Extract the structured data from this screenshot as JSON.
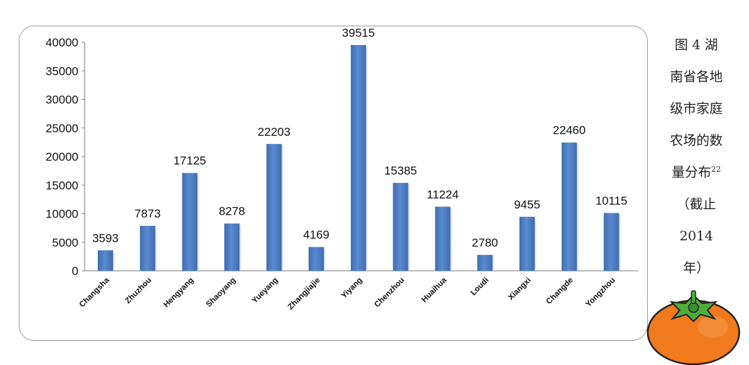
{
  "chart_data": {
    "type": "bar",
    "categories": [
      "Changsha",
      "Zhuzhou",
      "Hengyang",
      "Shaoyang",
      "Yueyang",
      "Zhangjiajie",
      "Yiyang",
      "Chenzhou",
      "Huaihua",
      "Loudi",
      "Xiangxi",
      "Changde",
      "Yongzhou"
    ],
    "values": [
      3593,
      7873,
      17125,
      8278,
      22203,
      4169,
      39515,
      15385,
      11224,
      2780,
      9455,
      22460,
      10115
    ],
    "value_labels": [
      "3593",
      "7873",
      "17125",
      "8278",
      "22203",
      "4169",
      "39515",
      "15385",
      "11224",
      "2780",
      "9455",
      "22460",
      "10115"
    ],
    "yticks": [
      "0",
      "5000",
      "10000",
      "15000",
      "20000",
      "25000",
      "30000",
      "35000",
      "40000"
    ],
    "ylim": [
      0,
      40000
    ],
    "bar_color": "#4f7ec1",
    "grid": false,
    "legend": "none",
    "title": "",
    "xlabel": "",
    "ylabel": ""
  },
  "caption": {
    "lines": [
      "图 4  湖",
      "南省各地",
      "级市家庭",
      "农场的数",
      "量分布",
      "（截止",
      "2014",
      "年）"
    ],
    "footnote": "22"
  },
  "decoration": {
    "icon": "persimmon-icon",
    "fruit_color": "#f07a1c",
    "leaf_color": "#4caf3a"
  }
}
